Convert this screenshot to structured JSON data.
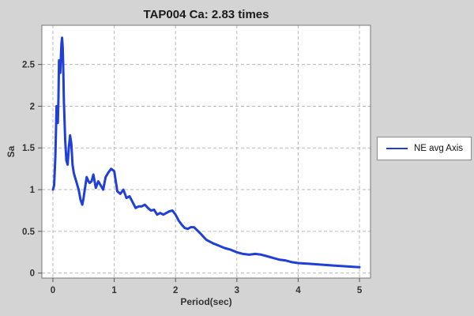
{
  "chart_data": {
    "type": "line",
    "title": "TAP004 Ca: 2.83 times",
    "xlabel": "Period(sec)",
    "ylabel": "Sa",
    "xlim": [
      -0.18,
      5.18
    ],
    "ylim": [
      -0.06,
      2.97
    ],
    "xticks": [
      0,
      1,
      2,
      3,
      4,
      5
    ],
    "yticks": [
      0,
      0.5,
      1,
      1.5,
      2,
      2.5
    ],
    "ytick_labels": [
      "0",
      "0.5",
      "1",
      "1.5",
      "2",
      "2.5"
    ],
    "grid": true,
    "legend_position": "right",
    "series": [
      {
        "name": "NE avg Axis",
        "color": "#1f3fd6",
        "x": [
          0.0,
          0.02,
          0.04,
          0.06,
          0.08,
          0.09,
          0.1,
          0.11,
          0.12,
          0.13,
          0.14,
          0.15,
          0.16,
          0.17,
          0.18,
          0.2,
          0.22,
          0.24,
          0.26,
          0.28,
          0.3,
          0.32,
          0.34,
          0.36,
          0.38,
          0.4,
          0.42,
          0.45,
          0.48,
          0.5,
          0.52,
          0.55,
          0.58,
          0.6,
          0.63,
          0.66,
          0.7,
          0.74,
          0.78,
          0.82,
          0.86,
          0.9,
          0.95,
          1.0,
          1.05,
          1.1,
          1.15,
          1.2,
          1.25,
          1.3,
          1.35,
          1.4,
          1.45,
          1.5,
          1.55,
          1.6,
          1.65,
          1.7,
          1.75,
          1.8,
          1.85,
          1.9,
          1.95,
          2.0,
          2.05,
          2.1,
          2.15,
          2.2,
          2.25,
          2.3,
          2.4,
          2.5,
          2.6,
          2.7,
          2.8,
          2.9,
          3.0,
          3.1,
          3.2,
          3.3,
          3.4,
          3.5,
          3.6,
          3.7,
          3.8,
          3.9,
          4.0,
          4.2,
          4.4,
          4.6,
          4.8,
          5.0
        ],
        "y": [
          1.0,
          1.05,
          1.4,
          2.0,
          1.8,
          2.1,
          2.55,
          2.45,
          2.4,
          2.6,
          2.75,
          2.82,
          2.7,
          2.4,
          2.05,
          1.6,
          1.35,
          1.3,
          1.5,
          1.65,
          1.55,
          1.3,
          1.2,
          1.15,
          1.1,
          1.05,
          1.0,
          0.88,
          0.82,
          0.9,
          1.0,
          1.15,
          1.1,
          1.08,
          1.1,
          1.18,
          1.02,
          1.1,
          1.05,
          1.0,
          1.15,
          1.2,
          1.25,
          1.22,
          0.98,
          0.95,
          1.0,
          0.9,
          0.92,
          0.85,
          0.78,
          0.8,
          0.8,
          0.82,
          0.78,
          0.75,
          0.76,
          0.7,
          0.72,
          0.7,
          0.72,
          0.74,
          0.75,
          0.7,
          0.63,
          0.58,
          0.54,
          0.53,
          0.55,
          0.55,
          0.48,
          0.4,
          0.36,
          0.33,
          0.3,
          0.28,
          0.25,
          0.23,
          0.22,
          0.23,
          0.22,
          0.2,
          0.18,
          0.16,
          0.15,
          0.13,
          0.12,
          0.11,
          0.1,
          0.09,
          0.08,
          0.07
        ]
      }
    ]
  }
}
